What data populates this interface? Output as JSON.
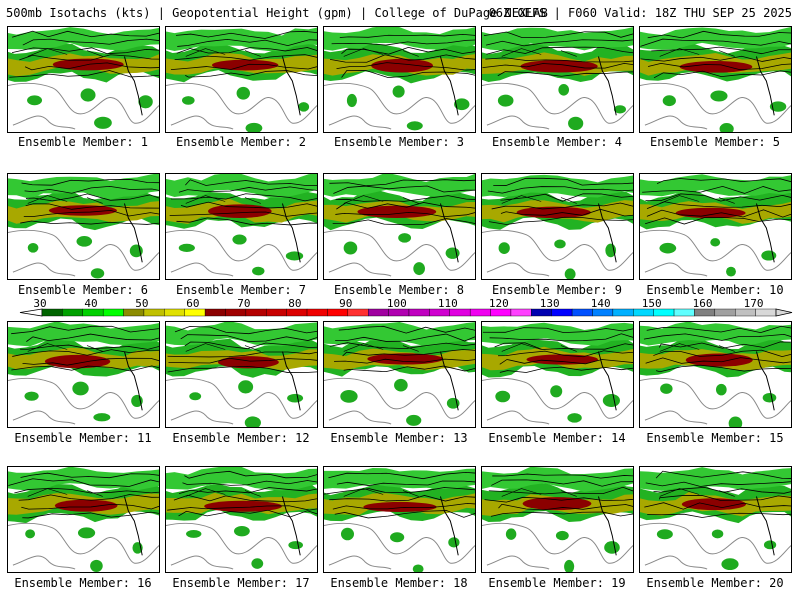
{
  "header": {
    "left": "500mb Isotachs (kts) | Geopotential Height (gpm) | College of DuPage NEXLAB",
    "right": "06Z GEFS | F060 Valid: 18Z THU SEP 25 2025"
  },
  "panels": [
    {
      "label": "Ensemble Member: 1"
    },
    {
      "label": "Ensemble Member: 2"
    },
    {
      "label": "Ensemble Member: 3"
    },
    {
      "label": "Ensemble Member: 4"
    },
    {
      "label": "Ensemble Member: 5"
    },
    {
      "label": "Ensemble Member: 6"
    },
    {
      "label": "Ensemble Member: 7"
    },
    {
      "label": "Ensemble Member: 8"
    },
    {
      "label": "Ensemble Member: 9"
    },
    {
      "label": "Ensemble Member: 10"
    },
    {
      "label": "Ensemble Member: 11"
    },
    {
      "label": "Ensemble Member: 12"
    },
    {
      "label": "Ensemble Member: 13"
    },
    {
      "label": "Ensemble Member: 14"
    },
    {
      "label": "Ensemble Member: 15"
    },
    {
      "label": "Ensemble Member: 16"
    },
    {
      "label": "Ensemble Member: 17"
    },
    {
      "label": "Ensemble Member: 18"
    },
    {
      "label": "Ensemble Member: 19"
    },
    {
      "label": "Ensemble Member: 20"
    }
  ],
  "colorbar": {
    "tick_labels": [
      "30",
      "40",
      "50",
      "60",
      "70",
      "80",
      "90",
      "100",
      "110",
      "120",
      "130",
      "140",
      "150",
      "160",
      "170"
    ],
    "colors": [
      "#006400",
      "#00a000",
      "#00d000",
      "#00ff00",
      "#8b8b00",
      "#c0c000",
      "#e0e000",
      "#ffff00",
      "#8b0000",
      "#a00000",
      "#b40000",
      "#c80000",
      "#dc0000",
      "#f00000",
      "#ff0000",
      "#ff3030",
      "#a000a0",
      "#b000b0",
      "#c000c0",
      "#d000d0",
      "#e000e0",
      "#f000f0",
      "#ff00ff",
      "#ff40ff",
      "#0000b0",
      "#0000ff",
      "#0050ff",
      "#0080ff",
      "#00b0ff",
      "#00d8ff",
      "#00ffff",
      "#60ffff",
      "#808080",
      "#a0a0a0",
      "#c0c0c0",
      "#d8d8d8"
    ]
  }
}
